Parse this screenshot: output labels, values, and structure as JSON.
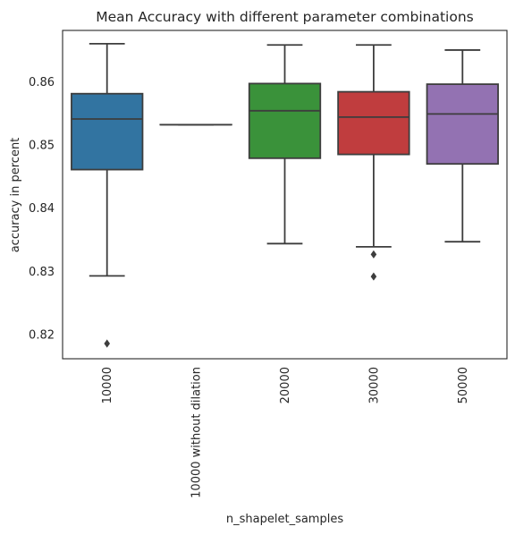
{
  "chart_data": {
    "type": "box",
    "title": "Mean Accuracy with different parameter combinations",
    "xlabel": "n_shapelet_samples",
    "ylabel": "accuracy in percent",
    "ylim": [
      0.8162,
      0.8681
    ],
    "yticks": [
      0.82,
      0.83,
      0.84,
      0.85,
      0.86
    ],
    "ytick_labels": [
      "0.82",
      "0.83",
      "0.84",
      "0.85",
      "0.86"
    ],
    "grid": false,
    "categories": [
      "10000",
      "10000 without dilation",
      "20000",
      "30000",
      "50000"
    ],
    "boxes": [
      {
        "category": "10000",
        "color": "#3274a1",
        "whislo": 0.8293,
        "q1": 0.8461,
        "med": 0.8541,
        "q3": 0.8581,
        "whishi": 0.866,
        "fliers": [
          0.8186
        ]
      },
      {
        "category": "10000 without dilation",
        "color": "#e1812c",
        "whislo": 0.8532,
        "q1": 0.8532,
        "med": 0.8532,
        "q3": 0.8532,
        "whishi": 0.8532,
        "fliers": []
      },
      {
        "category": "20000",
        "color": "#3a923a",
        "whislo": 0.8344,
        "q1": 0.8479,
        "med": 0.8554,
        "q3": 0.8597,
        "whishi": 0.8658,
        "fliers": []
      },
      {
        "category": "30000",
        "color": "#c03d3e",
        "whislo": 0.8339,
        "q1": 0.8485,
        "med": 0.8544,
        "q3": 0.8584,
        "whishi": 0.8658,
        "fliers": [
          0.8327,
          0.8292
        ]
      },
      {
        "category": "50000",
        "color": "#9372b2",
        "whislo": 0.8347,
        "q1": 0.847,
        "med": 0.8549,
        "q3": 0.8596,
        "whishi": 0.865,
        "fliers": []
      }
    ]
  }
}
